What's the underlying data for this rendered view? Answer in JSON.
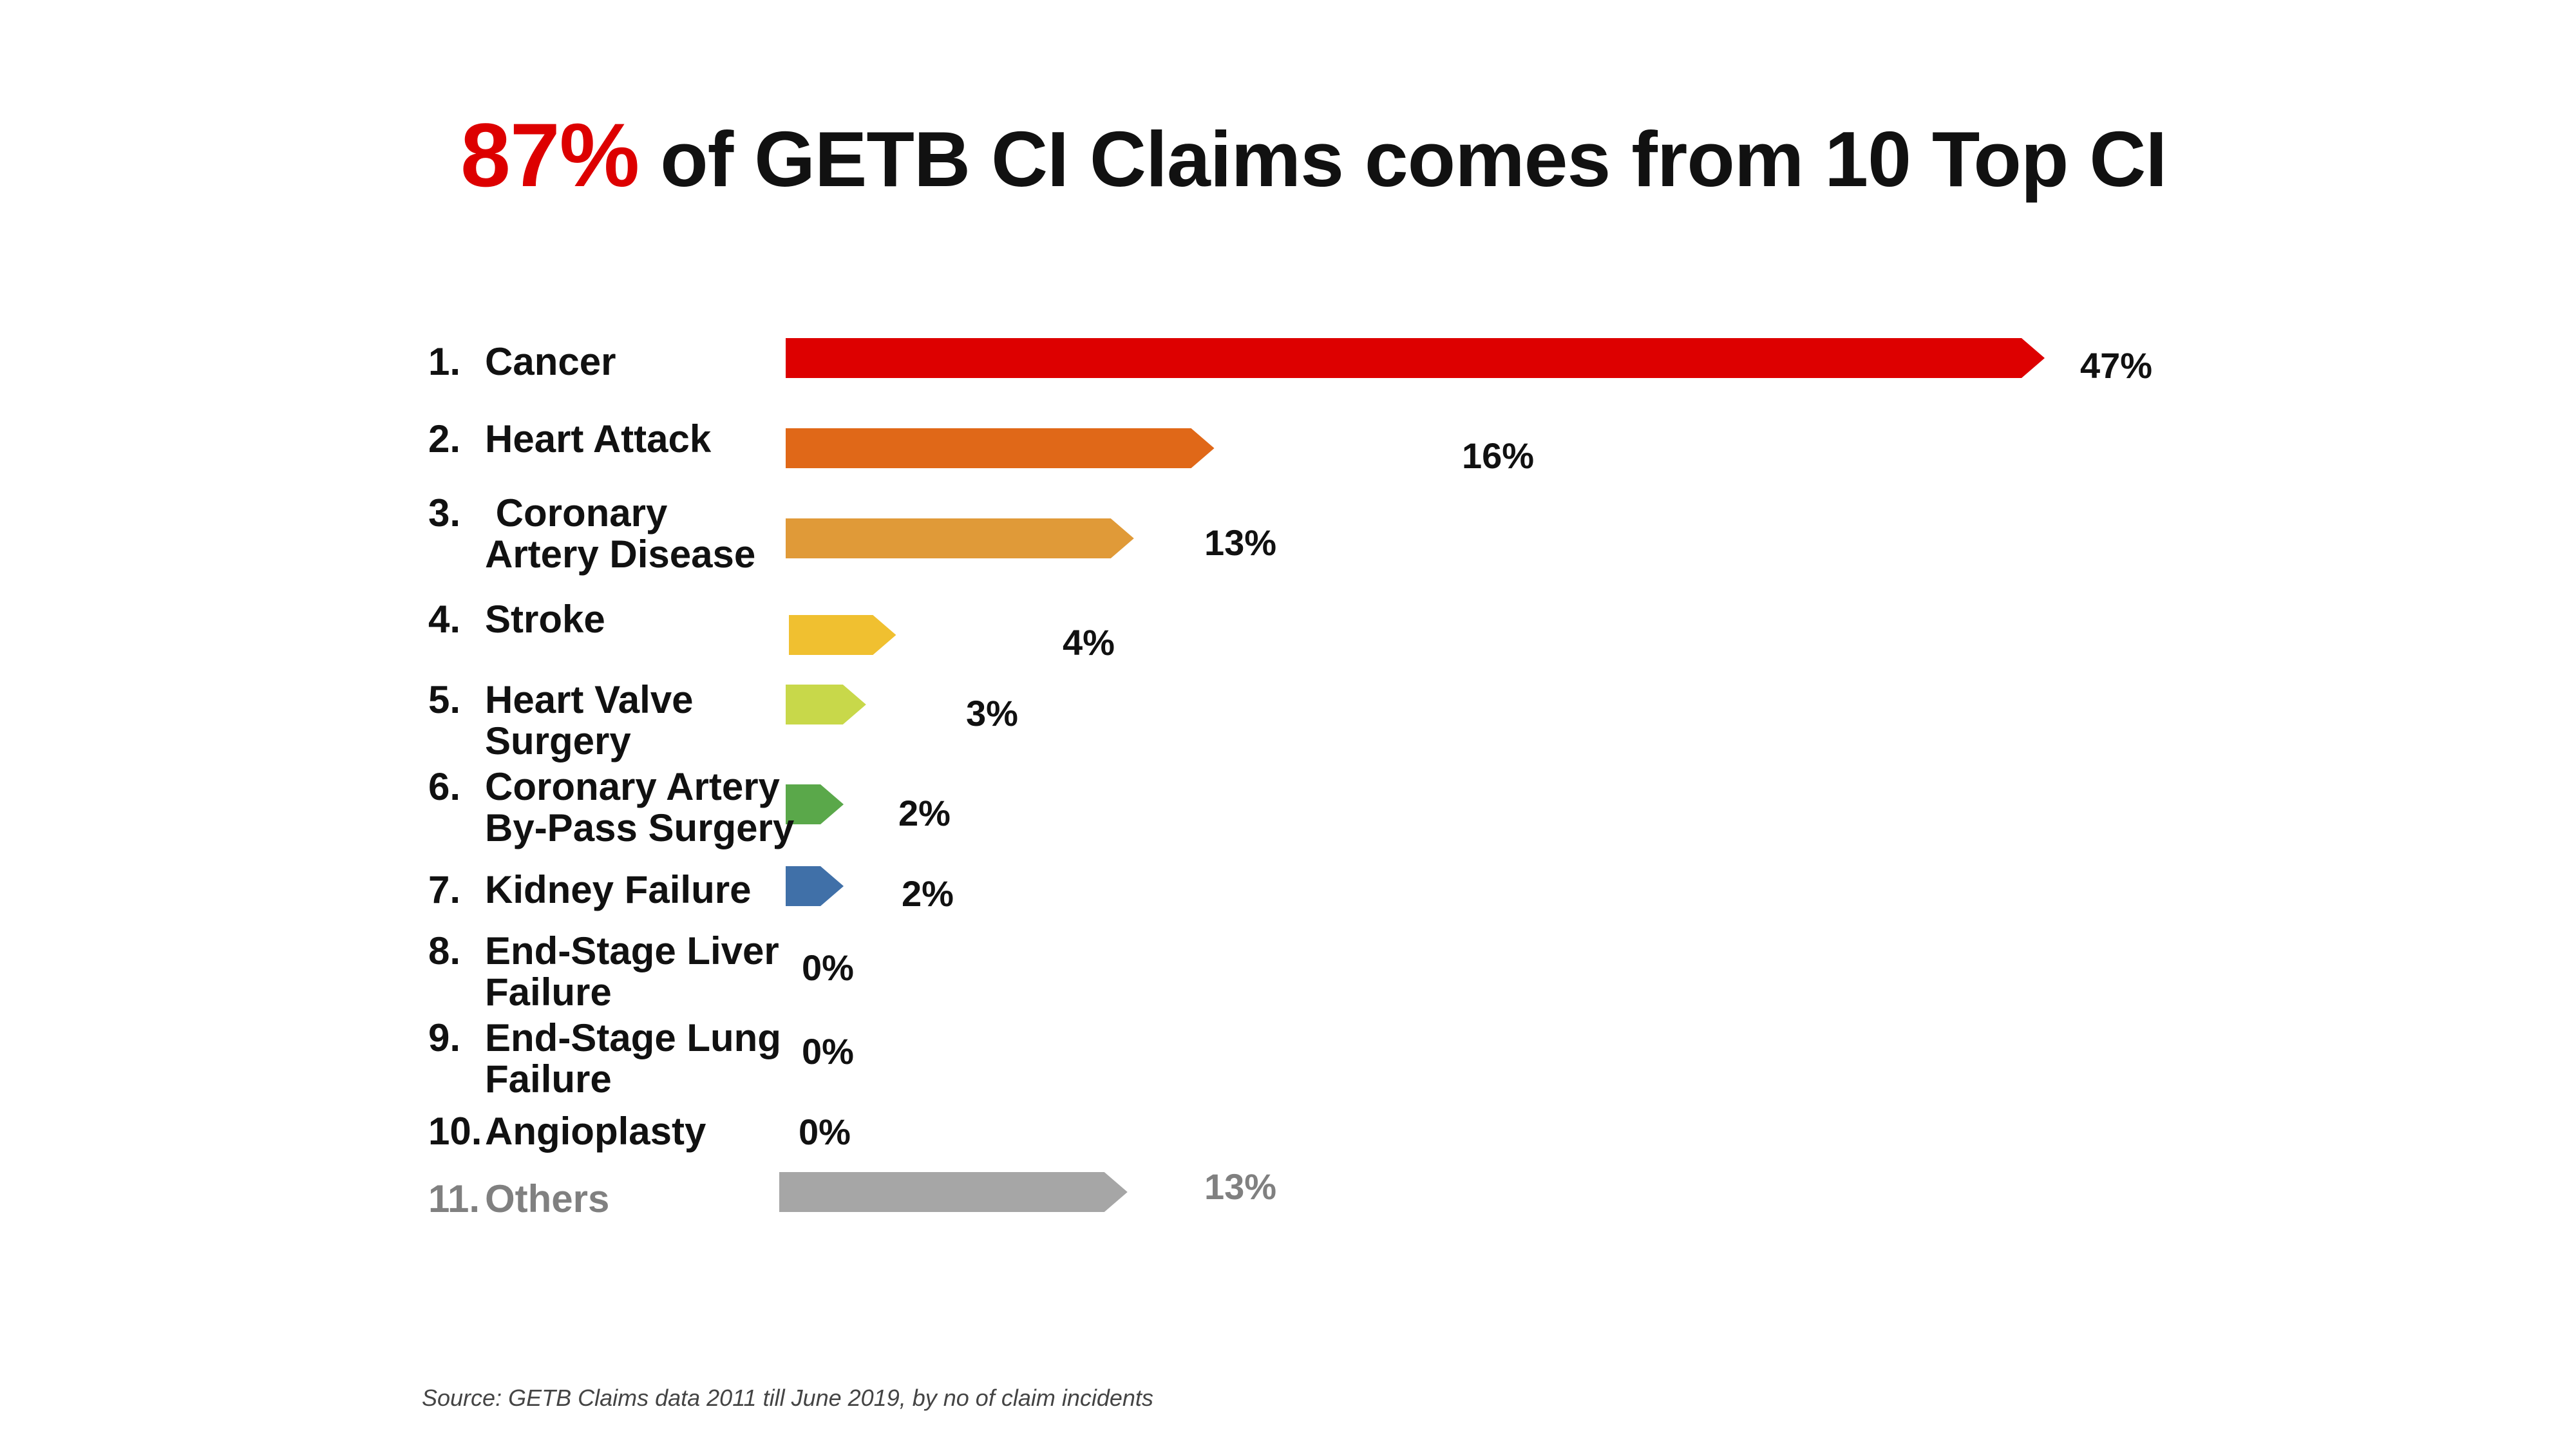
{
  "title": {
    "highlight": "87%",
    "rest": " of GETB CI Claims comes from 10 Top CI"
  },
  "source": "Source: GETB Claims data 2011 till June 2019, by no of claim incidents",
  "chart_data": {
    "type": "bar",
    "orientation": "horizontal",
    "title": "87% of GETB CI Claims comes from 10 Top CI",
    "categories": [
      "1. Cancer",
      "2. Heart Attack",
      "3. Coronary Artery Disease",
      "4. Stroke",
      "5. Heart Valve Surgery",
      "6. Coronary Artery By-Pass Surgery",
      "7. Kidney Failure",
      "8. End-Stage Liver Failure",
      "9. End-Stage Lung Failure",
      "10. Angioplasty",
      "11. Others"
    ],
    "values": [
      47,
      16,
      13,
      4,
      3,
      2,
      2,
      0,
      0,
      0,
      13
    ],
    "value_labels": [
      "47%",
      "16%",
      "13%",
      "4%",
      "3%",
      "2%",
      "2%",
      "0%",
      "0%",
      "0%",
      "13%"
    ],
    "colors": [
      "#dd0000",
      "#e06818",
      "#e09a38",
      "#f0c030",
      "#c8d84a",
      "#5aa84a",
      "#4070a8",
      "#000000",
      "#000000",
      "#000000",
      "#a6a6a6"
    ],
    "label_lines": [
      [
        "1.",
        "Cancer",
        ""
      ],
      [
        "2.",
        "Heart Attack",
        ""
      ],
      [
        "3.",
        " Coronary",
        "Artery Disease"
      ],
      [
        "4.",
        "Stroke",
        ""
      ],
      [
        "5.",
        "Heart Valve",
        "Surgery"
      ],
      [
        "6.",
        "Coronary Artery",
        "By-Pass Surgery"
      ],
      [
        "7.",
        "Kidney Failure",
        ""
      ],
      [
        "8.",
        "End-Stage Liver",
        "Failure"
      ],
      [
        "9.",
        "End-Stage Lung",
        "Failure"
      ],
      [
        "10.",
        "Angioplasty",
        ""
      ],
      [
        "11.",
        "Others",
        ""
      ]
    ],
    "xlabel": "",
    "ylabel": "",
    "xlim": [
      0,
      47
    ],
    "grid": false,
    "legend": "none"
  }
}
